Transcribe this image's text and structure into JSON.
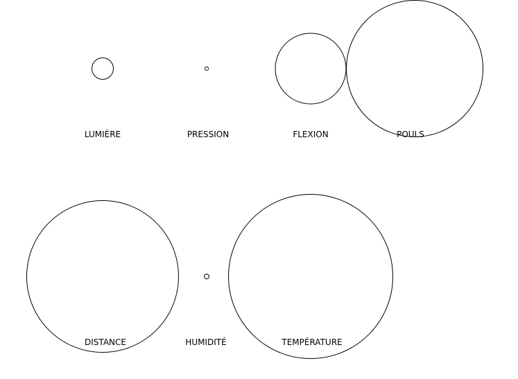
{
  "sensors": [
    {
      "id": "lumiere",
      "label": "LUMIÈRE"
    },
    {
      "id": "pression",
      "label": "PRESSION"
    },
    {
      "id": "flexion",
      "label": "FLEXION"
    },
    {
      "id": "pouls",
      "label": "POULS"
    },
    {
      "id": "distance",
      "label": "DISTANCE"
    },
    {
      "id": "humidite",
      "label": "HUMIDITÉ"
    },
    {
      "id": "temperature",
      "label": "TEMPÉRATURE"
    }
  ],
  "colors": {
    "background": "#ffffff",
    "stroke": "#000000",
    "text": "#000000"
  }
}
